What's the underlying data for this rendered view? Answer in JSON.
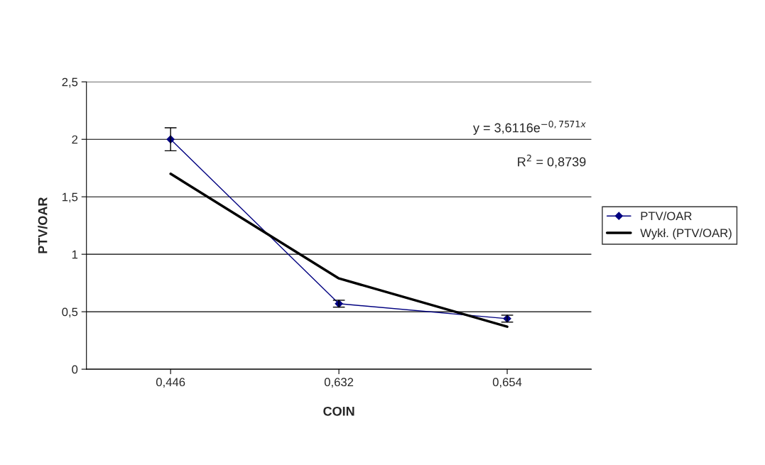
{
  "chart_data": {
    "type": "line",
    "xlabel": "COIN",
    "ylabel": "PTV/OAR",
    "categories": [
      "0,446",
      "0,632",
      "0,654"
    ],
    "series": [
      {
        "name": "PTV/OAR",
        "color": "#000080",
        "values": [
          2.0,
          0.57,
          0.44
        ],
        "errors": [
          0.1,
          0.03,
          0.03
        ],
        "marker": "diamond",
        "line_style": "solid"
      },
      {
        "name": "Wykł. (PTV/OAR)",
        "color": "#000000",
        "values": [
          1.7,
          0.79,
          0.37
        ],
        "marker": "none",
        "line_style": "solid"
      }
    ],
    "ylim": [
      0,
      2.5
    ],
    "yticks": [
      0,
      {
        "value": 0.5,
        "label": "0,5"
      },
      1,
      {
        "value": 1.5,
        "label": "1,5"
      },
      2,
      {
        "value": 2.5,
        "label": "2,5"
      }
    ],
    "grid": "y",
    "legend": "right",
    "annotations": [
      "y = 3,6116e$^{−0,7571x}$",
      "R$^{2}$ = 0,8739"
    ]
  }
}
